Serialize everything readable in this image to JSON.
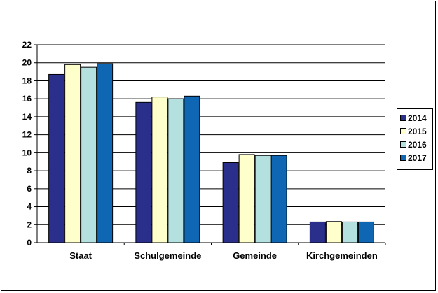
{
  "chart_data": {
    "type": "bar",
    "categories": [
      "Staat",
      "Schulgemeinde",
      "Gemeinde",
      "Kirchgemeinden"
    ],
    "series": [
      {
        "name": "2014",
        "color": "#2b2f8c",
        "values": [
          18.7,
          15.6,
          8.9,
          2.3
        ]
      },
      {
        "name": "2015",
        "color": "#ffffcc",
        "values": [
          19.8,
          16.2,
          9.8,
          2.35
        ]
      },
      {
        "name": "2016",
        "color": "#b4e0e0",
        "values": [
          19.5,
          16.0,
          9.7,
          2.3
        ]
      },
      {
        "name": "2017",
        "color": "#0f66b2",
        "values": [
          19.9,
          16.3,
          9.7,
          2.3
        ]
      }
    ],
    "yticks": [
      "0",
      "2",
      "4",
      "6",
      "8",
      "10",
      "12",
      "14",
      "16",
      "18",
      "20",
      "22"
    ],
    "ylim": [
      0,
      22
    ],
    "grid": true,
    "legend_position": "right"
  }
}
